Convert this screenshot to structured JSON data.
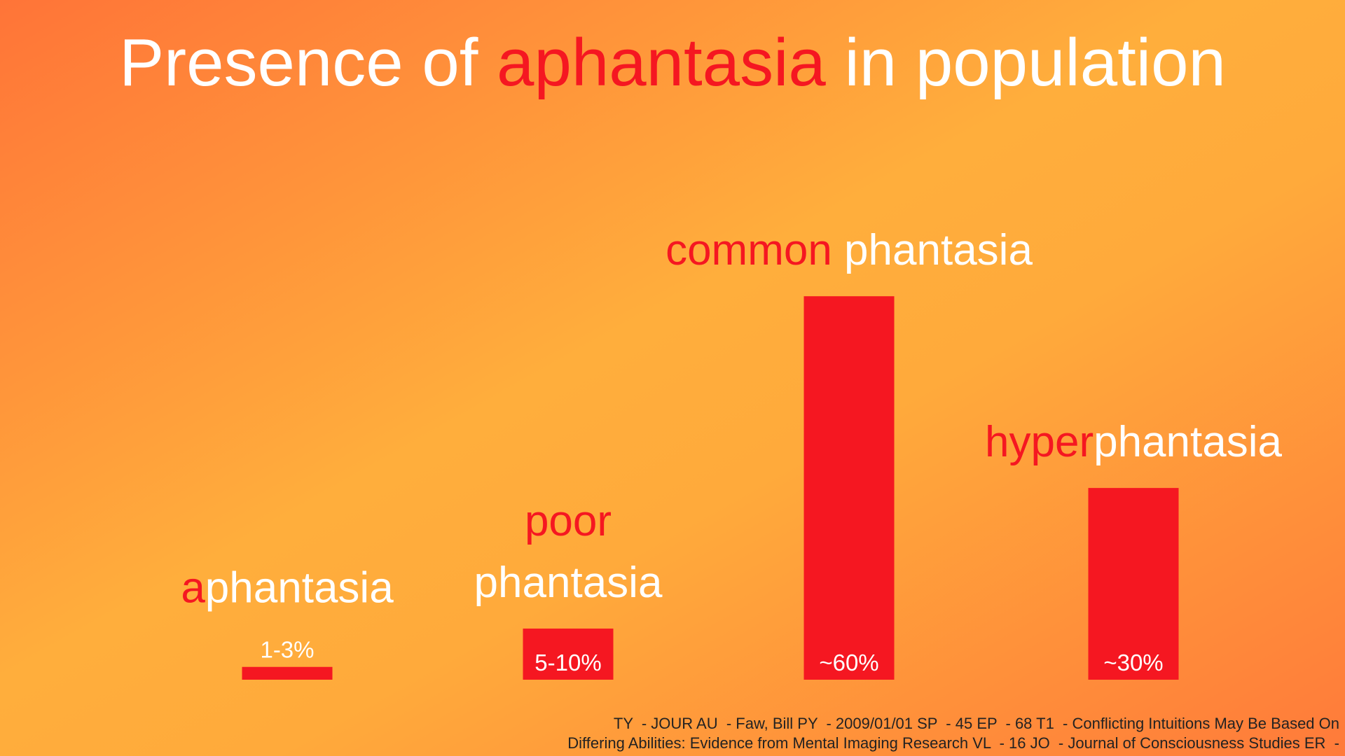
{
  "chart_data": {
    "type": "bar",
    "title": [
      {
        "text": "Presence of ",
        "highlight": false
      },
      {
        "text": "aphantasia",
        "highlight": true
      },
      {
        "text": " in population",
        "highlight": false
      }
    ],
    "categories": [
      [
        [
          {
            "text": "a",
            "highlight": true
          },
          {
            "text": "phantasia",
            "highlight": false
          }
        ]
      ],
      [
        [
          {
            "text": "poor",
            "highlight": true
          }
        ],
        [
          {
            "text": "phantasia",
            "highlight": false
          }
        ]
      ],
      [
        [
          {
            "text": "common",
            "highlight": true
          },
          {
            "text": " phantasia",
            "highlight": false
          }
        ]
      ],
      [
        [
          {
            "text": "hyper",
            "highlight": true
          },
          {
            "text": "phantasia",
            "highlight": false
          }
        ]
      ]
    ],
    "values": [
      2,
      8,
      60,
      30
    ],
    "value_labels": [
      "1-3%",
      "5-10%",
      "~60%",
      "~30%"
    ],
    "color": "#f51721",
    "highlight_color": "#f51721",
    "text_color": "#ffffff",
    "citation": [
      "TY  - JOUR AU  - Faw, Bill PY  - 2009/01/01 SP  - 45 EP  - 68 T1  - Conflicting Intuitions May Be Based On",
      "Differing Abilities: Evidence from Mental Imaging Research VL  - 16 JO  - Journal of Consciousness Studies ER  -"
    ]
  }
}
